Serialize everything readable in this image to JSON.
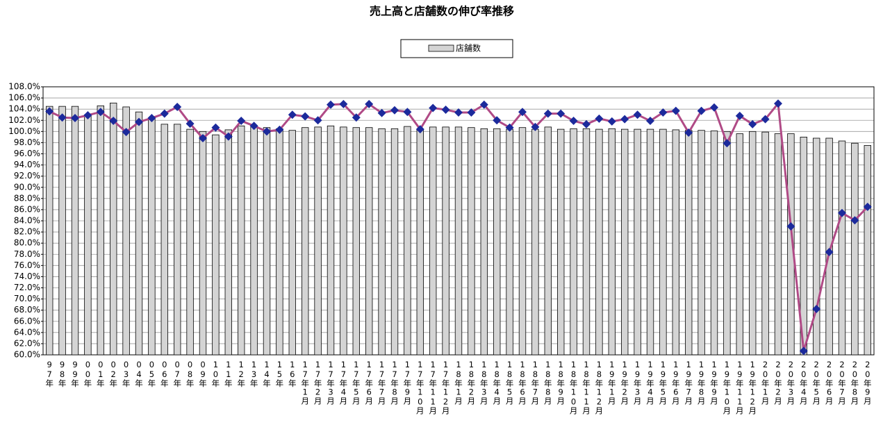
{
  "chart_data": {
    "type": "combo",
    "title": "売上高と店舗数の伸び率推移",
    "legend": "top",
    "grid": true,
    "categories": [
      "97年",
      "98年",
      "99年",
      "00年",
      "01年",
      "02年",
      "03年",
      "04年",
      "05年",
      "06年",
      "07年",
      "08年",
      "09年",
      "10年",
      "11年",
      "12年",
      "13年",
      "14年",
      "15年",
      "16年",
      "17年1月",
      "17年2月",
      "17年3月",
      "17年4月",
      "17年5月",
      "17年6月",
      "17年7月",
      "17年8月",
      "17年9月",
      "17年10月",
      "17年11月",
      "17年12月",
      "18年1月",
      "18年2月",
      "18年3月",
      "18年4月",
      "18年5月",
      "18年6月",
      "18年7月",
      "18年8月",
      "18年9月",
      "18年10月",
      "18年11月",
      "18年12月",
      "19年1月",
      "19年2月",
      "19年3月",
      "19年4月",
      "19年5月",
      "19年6月",
      "19年7月",
      "19年8月",
      "19年9月",
      "19年10月",
      "19年11月",
      "19年12月",
      "20年1月",
      "20年2月",
      "20年3月",
      "20年4月",
      "20年5月",
      "20年6月",
      "20年7月",
      "20年8月",
      "20年9月"
    ],
    "series": [
      {
        "name": "店舗数",
        "type": "bar",
        "color": "#d4d4d4",
        "values": [
          104.5,
          104.5,
          104.5,
          103.0,
          104.6,
          105.1,
          104.4,
          103.5,
          102.3,
          101.3,
          101.3,
          100.4,
          100.0,
          99.4,
          100.3,
          101.0,
          100.8,
          100.7,
          100.5,
          100.2,
          100.7,
          100.8,
          101.0,
          100.8,
          100.7,
          100.7,
          100.5,
          100.5,
          100.9,
          100.3,
          100.8,
          100.8,
          100.8,
          100.7,
          100.5,
          100.5,
          100.4,
          100.7,
          100.4,
          100.8,
          100.4,
          100.5,
          100.5,
          100.4,
          100.5,
          100.4,
          100.4,
          100.4,
          100.4,
          100.3,
          100.2,
          100.2,
          100.1,
          100.0,
          99.6,
          100.0,
          99.9,
          99.6,
          99.6,
          99.0,
          98.8,
          98.8,
          98.3,
          97.9,
          97.5
        ]
      },
      {
        "type": "line",
        "color": "#b04a86",
        "marker_color": "#1c2a9c",
        "values": [
          103.6,
          102.5,
          102.4,
          102.9,
          103.5,
          101.9,
          99.9,
          101.7,
          102.4,
          103.2,
          104.4,
          101.4,
          98.8,
          100.7,
          99.1,
          101.9,
          101.0,
          100.0,
          100.3,
          103.0,
          102.7,
          102.0,
          104.8,
          104.9,
          102.5,
          104.9,
          103.3,
          103.8,
          103.5,
          100.4,
          104.2,
          103.9,
          103.4,
          103.4,
          104.8,
          102.0,
          100.7,
          103.5,
          100.8,
          103.2,
          103.2,
          101.9,
          101.3,
          102.3,
          101.8,
          102.2,
          103.0,
          101.9,
          103.4,
          103.7,
          99.8,
          103.7,
          104.3,
          97.9,
          102.8,
          101.3,
          102.2,
          105.0,
          83.0,
          60.7,
          68.2,
          78.4,
          85.4,
          84.1,
          86.5
        ]
      }
    ],
    "ylim": [
      60,
      108
    ],
    "yticks": [
      {
        "value": 60,
        "label": "60.0%"
      },
      {
        "value": 62,
        "label": "62.0%"
      },
      {
        "value": 64,
        "label": "64.0%"
      },
      {
        "value": 66,
        "label": "66.0%"
      },
      {
        "value": 68,
        "label": "68.0%"
      },
      {
        "value": 70,
        "label": "70.0%"
      },
      {
        "value": 72,
        "label": "72.0%"
      },
      {
        "value": 74,
        "label": "74.0%"
      },
      {
        "value": 76,
        "label": "76.0%"
      },
      {
        "value": 78,
        "label": "78.0%"
      },
      {
        "value": 80,
        "label": "80.0%"
      },
      {
        "value": 82,
        "label": "82.0%"
      },
      {
        "value": 84,
        "label": "84.0%"
      },
      {
        "value": 86,
        "label": "86.0%"
      },
      {
        "value": 88,
        "label": "88.0%"
      },
      {
        "value": 90,
        "label": "90.0%"
      },
      {
        "value": 92,
        "label": "92.0%"
      },
      {
        "value": 94,
        "label": "94.0%"
      },
      {
        "value": 96,
        "label": "96.0%"
      },
      {
        "value": 98,
        "label": "98.0%"
      },
      {
        "value": 100,
        "label": "100.0%"
      },
      {
        "value": 102,
        "label": "102.0%"
      },
      {
        "value": 104,
        "label": "104.0%"
      },
      {
        "value": 106,
        "label": "106.0%"
      },
      {
        "value": 108,
        "label": "108.0%"
      }
    ]
  }
}
